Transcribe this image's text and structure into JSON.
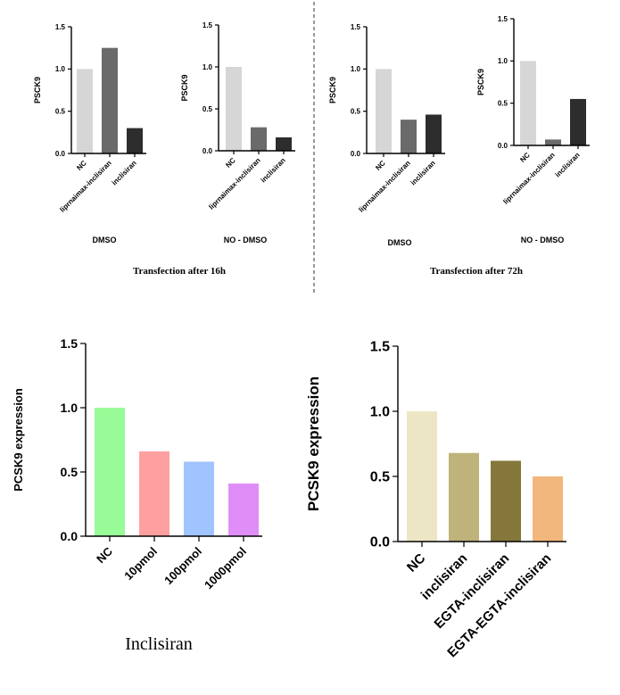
{
  "chart_data": [
    {
      "type": "bar",
      "ylabel": "PSCK9",
      "ylim": [
        0,
        1.5
      ],
      "yticks": [
        "0.0",
        "0.5",
        "1.0",
        "1.5"
      ],
      "categories": [
        "NC",
        "liprnaimax-inclisiran",
        "inclisiran"
      ],
      "values": [
        1.0,
        1.25,
        0.3
      ],
      "colors": [
        "#d6d6d6",
        "#6a6a6a",
        "#2d2d2d"
      ],
      "group_label": "DMSO"
    },
    {
      "type": "bar",
      "ylabel": "PSCK9",
      "ylim": [
        0,
        1.5
      ],
      "yticks": [
        "0.0",
        "0.5",
        "1.0",
        "1.5"
      ],
      "categories": [
        "NC",
        "liprnaimax-inclisiran",
        "inclisiran"
      ],
      "values": [
        1.0,
        0.28,
        0.16
      ],
      "colors": [
        "#d6d6d6",
        "#6a6a6a",
        "#2d2d2d"
      ],
      "group_label": "NO - DMSO"
    },
    {
      "type": "bar",
      "ylabel": "PSCK9",
      "ylim": [
        0,
        1.5
      ],
      "yticks": [
        "0.0",
        "0.5",
        "1.0",
        "1.5"
      ],
      "categories": [
        "NC",
        "liprnaimax-inclisiran",
        "inclisiran"
      ],
      "values": [
        1.0,
        0.4,
        0.46
      ],
      "colors": [
        "#d6d6d6",
        "#6a6a6a",
        "#2d2d2d"
      ],
      "group_label": "DMSO"
    },
    {
      "type": "bar",
      "ylabel": "PSCK9",
      "ylim": [
        0,
        1.5
      ],
      "yticks": [
        "0.0",
        "0.5",
        "1.0",
        "1.5"
      ],
      "categories": [
        "NC",
        "liprnaimax-inclisiran",
        "inclisiran"
      ],
      "values": [
        1.0,
        0.07,
        0.55
      ],
      "colors": [
        "#d6d6d6",
        "#6a6a6a",
        "#2d2d2d"
      ],
      "group_label": "NO - DMSO"
    },
    {
      "type": "bar",
      "ylabel": "PCSK9 expression",
      "ylim": [
        0,
        1.5
      ],
      "yticks": [
        "0.0",
        "0.5",
        "1.0",
        "1.5"
      ],
      "categories": [
        "NC",
        "10pmol",
        "100pmol",
        "1000pmol"
      ],
      "values": [
        1.0,
        0.66,
        0.58,
        0.41
      ],
      "colors": [
        "#98fb98",
        "#ffa0a0",
        "#a0c4ff",
        "#e08ef7"
      ],
      "xlabel": "Inclisiran"
    },
    {
      "type": "bar",
      "ylabel": "PCSK9 expression",
      "ylim": [
        0,
        1.5
      ],
      "yticks": [
        "0.0",
        "0.5",
        "1.0",
        "1.5"
      ],
      "categories": [
        "NC",
        "inclisiran",
        "EGTA-inclisiran",
        "EGTA-EGTA-inclisiran"
      ],
      "values": [
        1.0,
        0.68,
        0.62,
        0.5
      ],
      "colors": [
        "#ede6c4",
        "#bfb27a",
        "#85773a",
        "#f2b77c"
      ]
    }
  ],
  "captions": {
    "left": "Transfection after 16h",
    "right": "Transfection after 72h"
  }
}
